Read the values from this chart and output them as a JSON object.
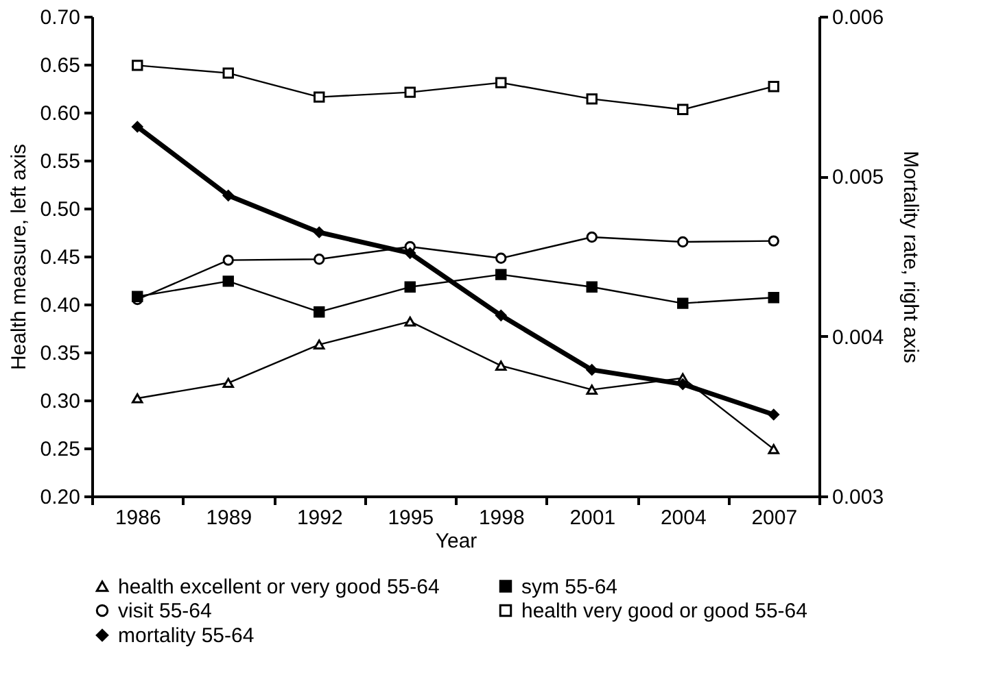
{
  "chart_data": {
    "type": "line",
    "xlabel": "Year",
    "ylabel": "Health measure, left axis",
    "y2label": "Mortality rate, right axis",
    "categories": [
      "1986",
      "1989",
      "1992",
      "1995",
      "1998",
      "2001",
      "2004",
      "2007"
    ],
    "ylim": [
      0.2,
      0.7
    ],
    "yticks": [
      {
        "value": 0.2,
        "label": "0.20"
      },
      0.25,
      {
        "value": 0.3,
        "label": "0.30"
      },
      0.35,
      {
        "value": 0.4,
        "label": "0.40"
      },
      0.45,
      {
        "value": 0.5,
        "label": "0.50"
      },
      0.55,
      {
        "value": 0.6,
        "label": "0.60"
      },
      0.65,
      {
        "value": 0.7,
        "label": "0.70"
      }
    ],
    "y2lim": [
      0.003,
      0.006
    ],
    "y2ticks": [
      0.003,
      0.004,
      0.005,
      0.006
    ],
    "legend": "bottom",
    "grid": false,
    "series": [
      {
        "name": "health excellent or very good 55-64",
        "color": "#000000",
        "marker": "triangle",
        "values": [
          0.302,
          0.318,
          0.358,
          0.382,
          0.336,
          0.311,
          0.323,
          0.249
        ]
      },
      {
        "name": "sym 55-64",
        "color": "#000000",
        "marker": "square",
        "values": [
          0.408,
          0.424,
          0.392,
          0.418,
          0.431,
          0.418,
          0.401,
          0.407
        ]
      },
      {
        "name": "visit 55-64",
        "color": "#000000",
        "marker": "circle",
        "values": [
          0.405,
          0.446,
          0.447,
          0.46,
          0.448,
          0.47,
          0.465,
          0.466
        ]
      },
      {
        "name": "health very good or good 55-64",
        "color": "#000000",
        "marker": "square",
        "values": [
          0.649,
          0.641,
          0.616,
          0.621,
          0.631,
          0.614,
          0.603,
          0.627
        ]
      },
      {
        "name": "mortality 55-64",
        "color": "#000000",
        "marker": "diamond",
        "axis": "y2",
        "values": [
          0.00531,
          0.00488,
          0.00465,
          0.00452,
          0.00413,
          0.00379,
          0.0037,
          0.00351
        ]
      }
    ]
  }
}
